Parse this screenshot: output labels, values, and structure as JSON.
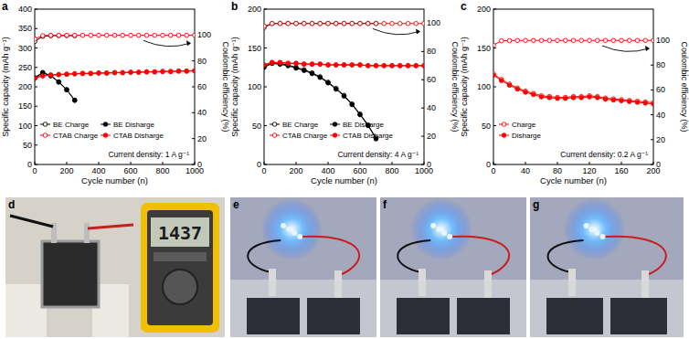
{
  "chart_data": [
    {
      "type": "line",
      "panel_label": "a",
      "annotation": "Current density: 1 A g⁻¹",
      "x_label": "Cycle number (n)",
      "y_label": "Specific capacity (mAh g⁻¹)",
      "y2_label": "Coulombic efficiency (%)",
      "xlim": [
        0,
        1000
      ],
      "xticks": [
        0,
        200,
        400,
        600,
        800,
        1000
      ],
      "ylim": [
        0,
        400
      ],
      "yticks": [
        0,
        50,
        100,
        150,
        200,
        250,
        300,
        350,
        400
      ],
      "y2lim": [
        0,
        120
      ],
      "y2ticks": [
        0,
        20,
        40,
        60,
        80,
        100
      ],
      "legend": "lower left",
      "x": [
        0,
        50,
        100,
        150,
        200,
        250,
        300,
        350,
        400,
        450,
        500,
        550,
        600,
        650,
        700,
        750,
        800,
        850,
        900,
        950,
        1000
      ],
      "series": [
        {
          "name": "BE Charge",
          "color": "#000000",
          "marker": "open-circle",
          "values": [
            224,
            237,
            229,
            213,
            193,
            166,
            null,
            null,
            null,
            null,
            null,
            null,
            null,
            null,
            null,
            null,
            null,
            null,
            null,
            null,
            null
          ]
        },
        {
          "name": "CTAB Charge",
          "color": "#ff0000",
          "marker": "open-circle",
          "values": [
            223,
            229,
            231,
            232,
            233,
            234,
            235,
            235,
            236,
            236,
            237,
            237,
            238,
            238,
            239,
            239,
            240,
            240,
            241,
            241,
            242
          ]
        },
        {
          "name": "BE Disharge",
          "color": "#000000",
          "marker": "circle",
          "values": [
            222,
            236,
            228,
            212,
            192,
            165,
            null,
            null,
            null,
            null,
            null,
            null,
            null,
            null,
            null,
            null,
            null,
            null,
            null,
            null,
            null
          ]
        },
        {
          "name": "CTAB Disharge",
          "color": "#ff0000",
          "marker": "circle",
          "values": [
            222,
            228,
            230,
            231,
            232,
            233,
            234,
            234,
            235,
            235,
            236,
            236,
            237,
            237,
            238,
            238,
            239,
            239,
            240,
            240,
            241
          ]
        },
        {
          "color": "#000000",
          "marker": "open-circle",
          "axis": "y2",
          "values": [
            95,
            99,
            99.5,
            99.6,
            99.6,
            99.5,
            null,
            null,
            null,
            null,
            null,
            null,
            null,
            null,
            null,
            null,
            null,
            null,
            null,
            null,
            null
          ]
        },
        {
          "color": "#ff0000",
          "marker": "open-circle",
          "axis": "y2",
          "values": [
            97,
            99.5,
            99.7,
            99.8,
            99.8,
            99.8,
            99.8,
            99.8,
            99.8,
            99.8,
            99.8,
            99.8,
            99.8,
            99.8,
            99.8,
            99.8,
            99.8,
            99.8,
            99.8,
            99.8,
            99.8
          ]
        }
      ]
    },
    {
      "type": "line",
      "panel_label": "b",
      "annotation": "Current density: 4 A g⁻¹",
      "x_label": "Cycle number (n)",
      "y_label": "Specific capacity (mAh g⁻¹)",
      "y2_label": "Coulombic efficiency (%)",
      "xlim": [
        0,
        1000
      ],
      "xticks": [
        0,
        200,
        400,
        600,
        800,
        1000
      ],
      "ylim": [
        0,
        200
      ],
      "yticks": [
        0,
        50,
        100,
        150,
        200
      ],
      "y2lim": [
        0,
        110
      ],
      "y2ticks": [
        0,
        20,
        40,
        60,
        80,
        100
      ],
      "legend": "lower left",
      "x": [
        0,
        50,
        100,
        150,
        200,
        250,
        300,
        350,
        400,
        450,
        500,
        550,
        600,
        650,
        700,
        750,
        800,
        850,
        900,
        950,
        1000
      ],
      "series": [
        {
          "name": "BE Charge",
          "color": "#000000",
          "marker": "open-circle",
          "values": [
            126,
            131,
            130,
            128,
            125,
            122,
            118,
            113,
            106,
            98,
            89,
            78,
            65,
            51,
            34,
            null,
            null,
            null,
            null,
            null,
            null
          ]
        },
        {
          "name": "CTAB Charge",
          "color": "#ff0000",
          "marker": "open-circle",
          "values": [
            128.5,
            131.5,
            131.5,
            130.5,
            130.5,
            129.5,
            129.5,
            129.5,
            128.5,
            128.5,
            128.5,
            128.5,
            128.5,
            127.5,
            127.5,
            127.5,
            127.5,
            127.5,
            127.5,
            127.5,
            127.5
          ]
        },
        {
          "name": "BE Disharge",
          "color": "#000000",
          "marker": "circle",
          "values": [
            125,
            130,
            129,
            127,
            124,
            121,
            117,
            112,
            105,
            97,
            88,
            77,
            64,
            50,
            33,
            null,
            null,
            null,
            null,
            null,
            null
          ]
        },
        {
          "name": "CTAB Disharge",
          "color": "#ff0000",
          "marker": "circle",
          "values": [
            128,
            131,
            131,
            130,
            130,
            129,
            129,
            129,
            128,
            128,
            128,
            128,
            128,
            127,
            127,
            127,
            127,
            127,
            127,
            127,
            127
          ]
        },
        {
          "color": "#000000",
          "marker": "open-circle",
          "axis": "y2",
          "values": [
            97,
            99.8,
            99.9,
            99.9,
            99.9,
            99.9,
            99.9,
            99.9,
            99.9,
            99.9,
            99.9,
            99.9,
            99.9,
            99.9,
            99.9,
            null,
            null,
            null,
            null,
            null,
            null
          ]
        },
        {
          "color": "#ff0000",
          "marker": "open-circle",
          "axis": "y2",
          "values": [
            98,
            99.8,
            99.8,
            99.8,
            99.8,
            99.8,
            99.8,
            99.8,
            99.8,
            99.8,
            99.8,
            99.8,
            99.8,
            99.8,
            99.8,
            99.8,
            99.8,
            99.8,
            99.8,
            99.8,
            99.8
          ]
        }
      ]
    },
    {
      "type": "line",
      "panel_label": "c",
      "annotation": "Current density: 0.2 A g⁻¹",
      "x_label": "Cycle number (n)",
      "y_label": "Specific capacity (mAh g⁻¹)",
      "y2_label": "Coulombic efficiency (%)",
      "xlim": [
        0,
        200
      ],
      "xticks": [
        0,
        40,
        80,
        120,
        160,
        200
      ],
      "ylim": [
        0,
        200
      ],
      "yticks": [
        0,
        50,
        100,
        150,
        200
      ],
      "y2lim": [
        0,
        125
      ],
      "y2ticks": [
        0,
        20,
        40,
        60,
        80,
        100
      ],
      "legend": "lower left",
      "x": [
        0,
        10,
        20,
        30,
        40,
        50,
        60,
        70,
        80,
        90,
        100,
        110,
        120,
        130,
        140,
        150,
        160,
        170,
        180,
        190,
        200
      ],
      "series": [
        {
          "name": "Charge",
          "color": "#ff0000",
          "marker": "open-circle",
          "values": [
            116.5,
            109.5,
            103.5,
            98.5,
            94.5,
            91.5,
            88.5,
            87.5,
            86.5,
            86.5,
            87.5,
            87.5,
            88.5,
            87.5,
            85.5,
            84.5,
            83.5,
            82.5,
            81.5,
            80.5,
            79.5
          ]
        },
        {
          "name": "Disharge",
          "color": "#ff0000",
          "marker": "circle",
          "values": [
            115,
            108,
            102,
            97,
            93,
            90,
            87,
            86,
            85,
            85,
            86,
            86,
            87,
            86,
            84,
            83,
            82,
            81,
            80,
            79,
            78
          ]
        },
        {
          "color": "#ff0000",
          "marker": "open-circle",
          "axis": "y2",
          "values": [
            96,
            99.5,
            99.7,
            99.8,
            99.8,
            99.8,
            99.8,
            99.8,
            99.8,
            99.8,
            99.8,
            99.8,
            99.8,
            99.8,
            99.8,
            99.8,
            99.8,
            99.8,
            99.8,
            99.8,
            99.8
          ]
        }
      ]
    }
  ],
  "photos": [
    {
      "label": "d",
      "display": "1437"
    },
    {
      "label": "e"
    },
    {
      "label": "f"
    },
    {
      "label": "g"
    }
  ]
}
